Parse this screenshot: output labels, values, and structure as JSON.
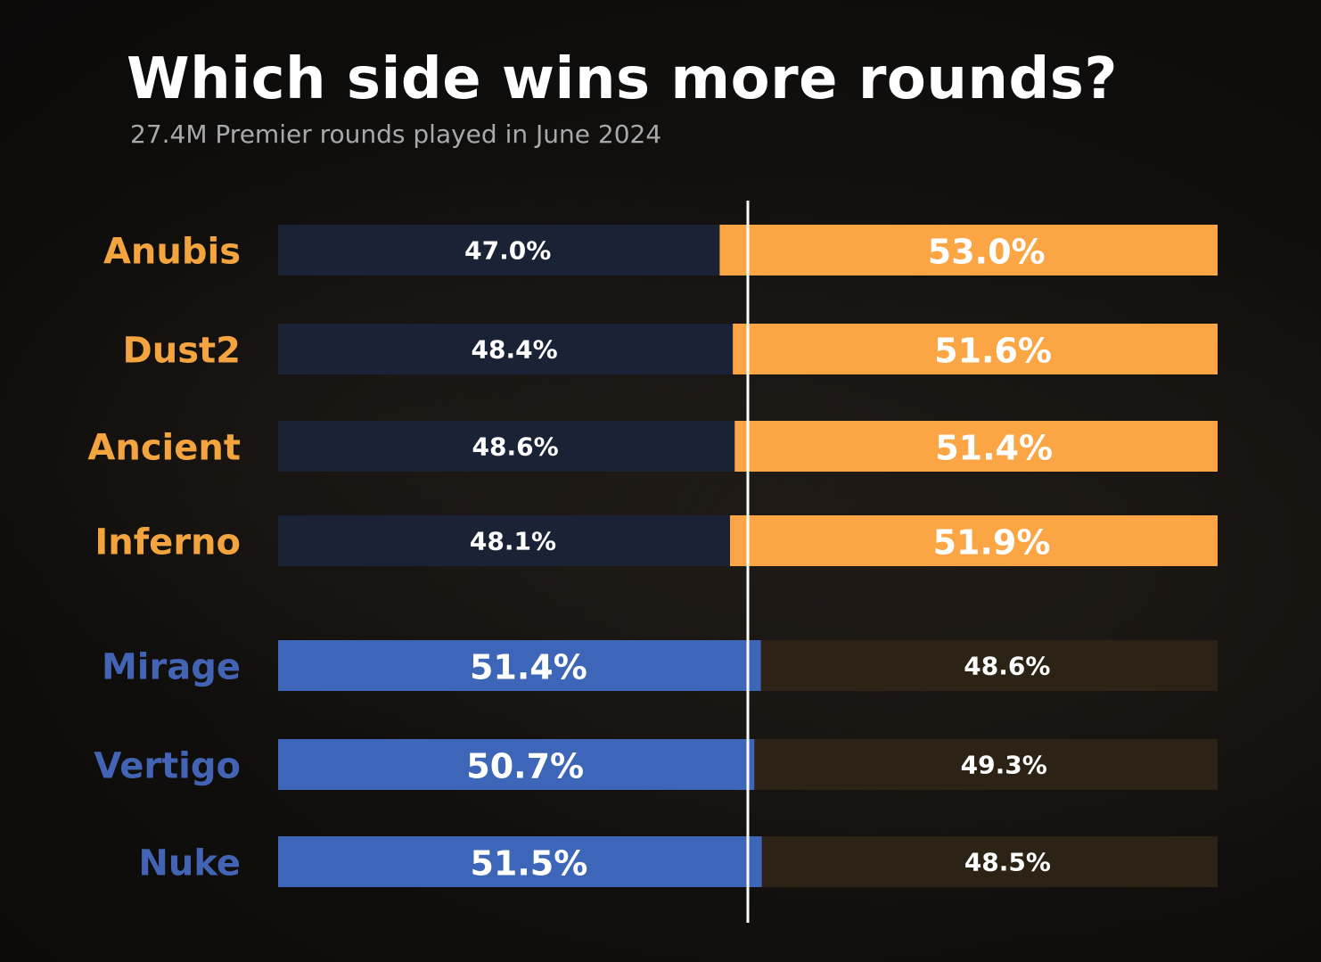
{
  "title": "Which side wins more rounds?",
  "subtitle": "27.4M Premier rounds played in June 2024",
  "colors": {
    "ct": "#3d65b8",
    "ct_dim": "#1a2235",
    "t": "#fba544",
    "t_dim": "#2c2216",
    "t_label": "#f4a43e",
    "ct_label": "#4364b5",
    "divider": "#ffffff"
  },
  "chart_data": {
    "type": "bar",
    "orientation": "horizontal",
    "stacked": true,
    "xlim": [
      0,
      100
    ],
    "categories": [
      "Anubis",
      "Dust2",
      "Ancient",
      "Inferno",
      "Mirage",
      "Vertigo",
      "Nuke"
    ],
    "series": [
      {
        "values": [
          47.0,
          48.4,
          48.6,
          48.1,
          51.4,
          50.7,
          51.5
        ],
        "labels": [
          "47.0%",
          "48.4%",
          "48.6%",
          "48.1%",
          "51.4%",
          "50.7%",
          "51.5%"
        ]
      },
      {
        "values": [
          53.0,
          51.6,
          51.4,
          51.9,
          48.6,
          49.3,
          48.5
        ],
        "labels": [
          "53.0%",
          "51.6%",
          "51.4%",
          "51.9%",
          "48.6%",
          "49.3%",
          "48.5%"
        ]
      }
    ],
    "reference_line": 50
  }
}
